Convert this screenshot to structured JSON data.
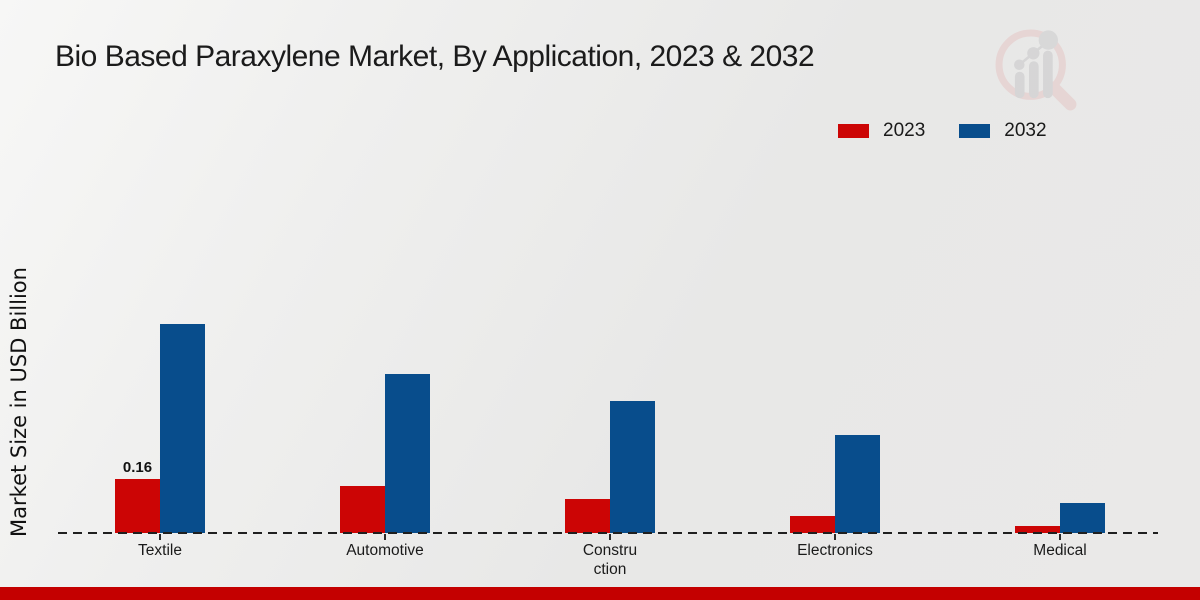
{
  "header": {
    "title": "Bio Based Paraxylene Market, By Application, 2023 & 2032"
  },
  "legend": {
    "position": "top-right",
    "items": [
      {
        "label": "2023",
        "color": "#cc0505"
      },
      {
        "label": "2032",
        "color": "#084d8c"
      }
    ]
  },
  "watermark_icon": "magnifier-bar-chart-logo",
  "chart_data": {
    "type": "bar",
    "title": "Bio Based Paraxylene Market, By Application, 2023 & 2032",
    "categories": [
      "Textile",
      "Automotive",
      "Construction",
      "Electronics",
      "Medical"
    ],
    "tick_labels": [
      "Textile",
      "Automotive",
      "Constru\nction",
      "Electronics",
      "Medical"
    ],
    "series": [
      {
        "name": "2023",
        "color": "#cc0505",
        "values": [
          0.16,
          0.14,
          0.1,
          0.05,
          0.02
        ]
      },
      {
        "name": "2032",
        "color": "#084d8c",
        "values": [
          0.62,
          0.47,
          0.39,
          0.29,
          0.09
        ]
      }
    ],
    "value_labels": [
      {
        "category": "Textile",
        "series": "2023",
        "text": "0.16"
      }
    ],
    "xlabel": "",
    "ylabel": "Market Size in USD Billion",
    "ylim": [
      0,
      0.7
    ],
    "grid": false,
    "axis_style": "dashed-baseline-only",
    "legend_position": "top-right"
  },
  "footer": {
    "accent_color": "#c40000"
  }
}
